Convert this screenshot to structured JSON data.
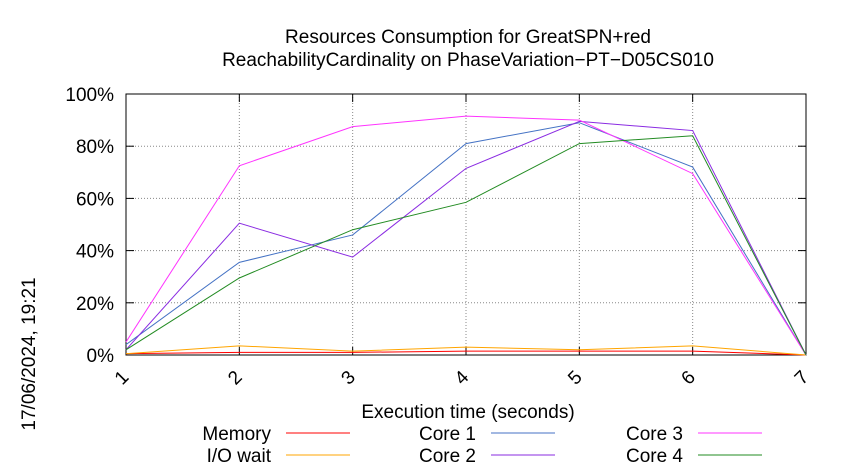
{
  "chart_data": {
    "type": "line",
    "title": "Resources Consumption for GreatSPN+red",
    "subtitle": "ReachabilityCardinality on PhaseVariation−PT−D05CS010",
    "xlabel": "Execution time (seconds)",
    "ylabel": "",
    "side_label": "17/06/2024, 19:21",
    "x": [
      1,
      2,
      3,
      4,
      5,
      6,
      7
    ],
    "xlim": [
      1,
      7
    ],
    "ylim": [
      0,
      100
    ],
    "x_ticks": [
      "1",
      "2",
      "3",
      "4",
      "5",
      "6",
      "7"
    ],
    "y_ticks": [
      {
        "value": 0,
        "label": "0%"
      },
      {
        "value": 20,
        "label": "20%"
      },
      {
        "value": 40,
        "label": "40%"
      },
      {
        "value": 60,
        "label": "60%"
      },
      {
        "value": 80,
        "label": "80%"
      },
      {
        "value": 100,
        "label": "100%"
      }
    ],
    "grid": true,
    "legend_position": "bottom",
    "series": [
      {
        "name": "Memory",
        "color": "#ff0000",
        "values": [
          0.5,
          1.0,
          1.0,
          1.5,
          1.5,
          1.5,
          0
        ]
      },
      {
        "name": "I/O wait",
        "color": "#ffa500",
        "values": [
          0.5,
          3.5,
          1.5,
          3.0,
          2.0,
          3.5,
          0
        ]
      },
      {
        "name": "Core 1",
        "color": "#4472c4",
        "values": [
          4.0,
          35.5,
          46.0,
          81.0,
          89.0,
          72.0,
          0
        ]
      },
      {
        "name": "Core 2",
        "color": "#8a2be2",
        "values": [
          2.0,
          50.5,
          37.5,
          71.5,
          89.5,
          86.0,
          0
        ]
      },
      {
        "name": "Core 3",
        "color": "#ff33ff",
        "values": [
          5.0,
          72.5,
          87.5,
          91.5,
          90.0,
          69.5,
          0
        ]
      },
      {
        "name": "Core 4",
        "color": "#228b22",
        "values": [
          2.0,
          29.5,
          48.0,
          58.5,
          81.0,
          84.0,
          0
        ]
      }
    ]
  }
}
